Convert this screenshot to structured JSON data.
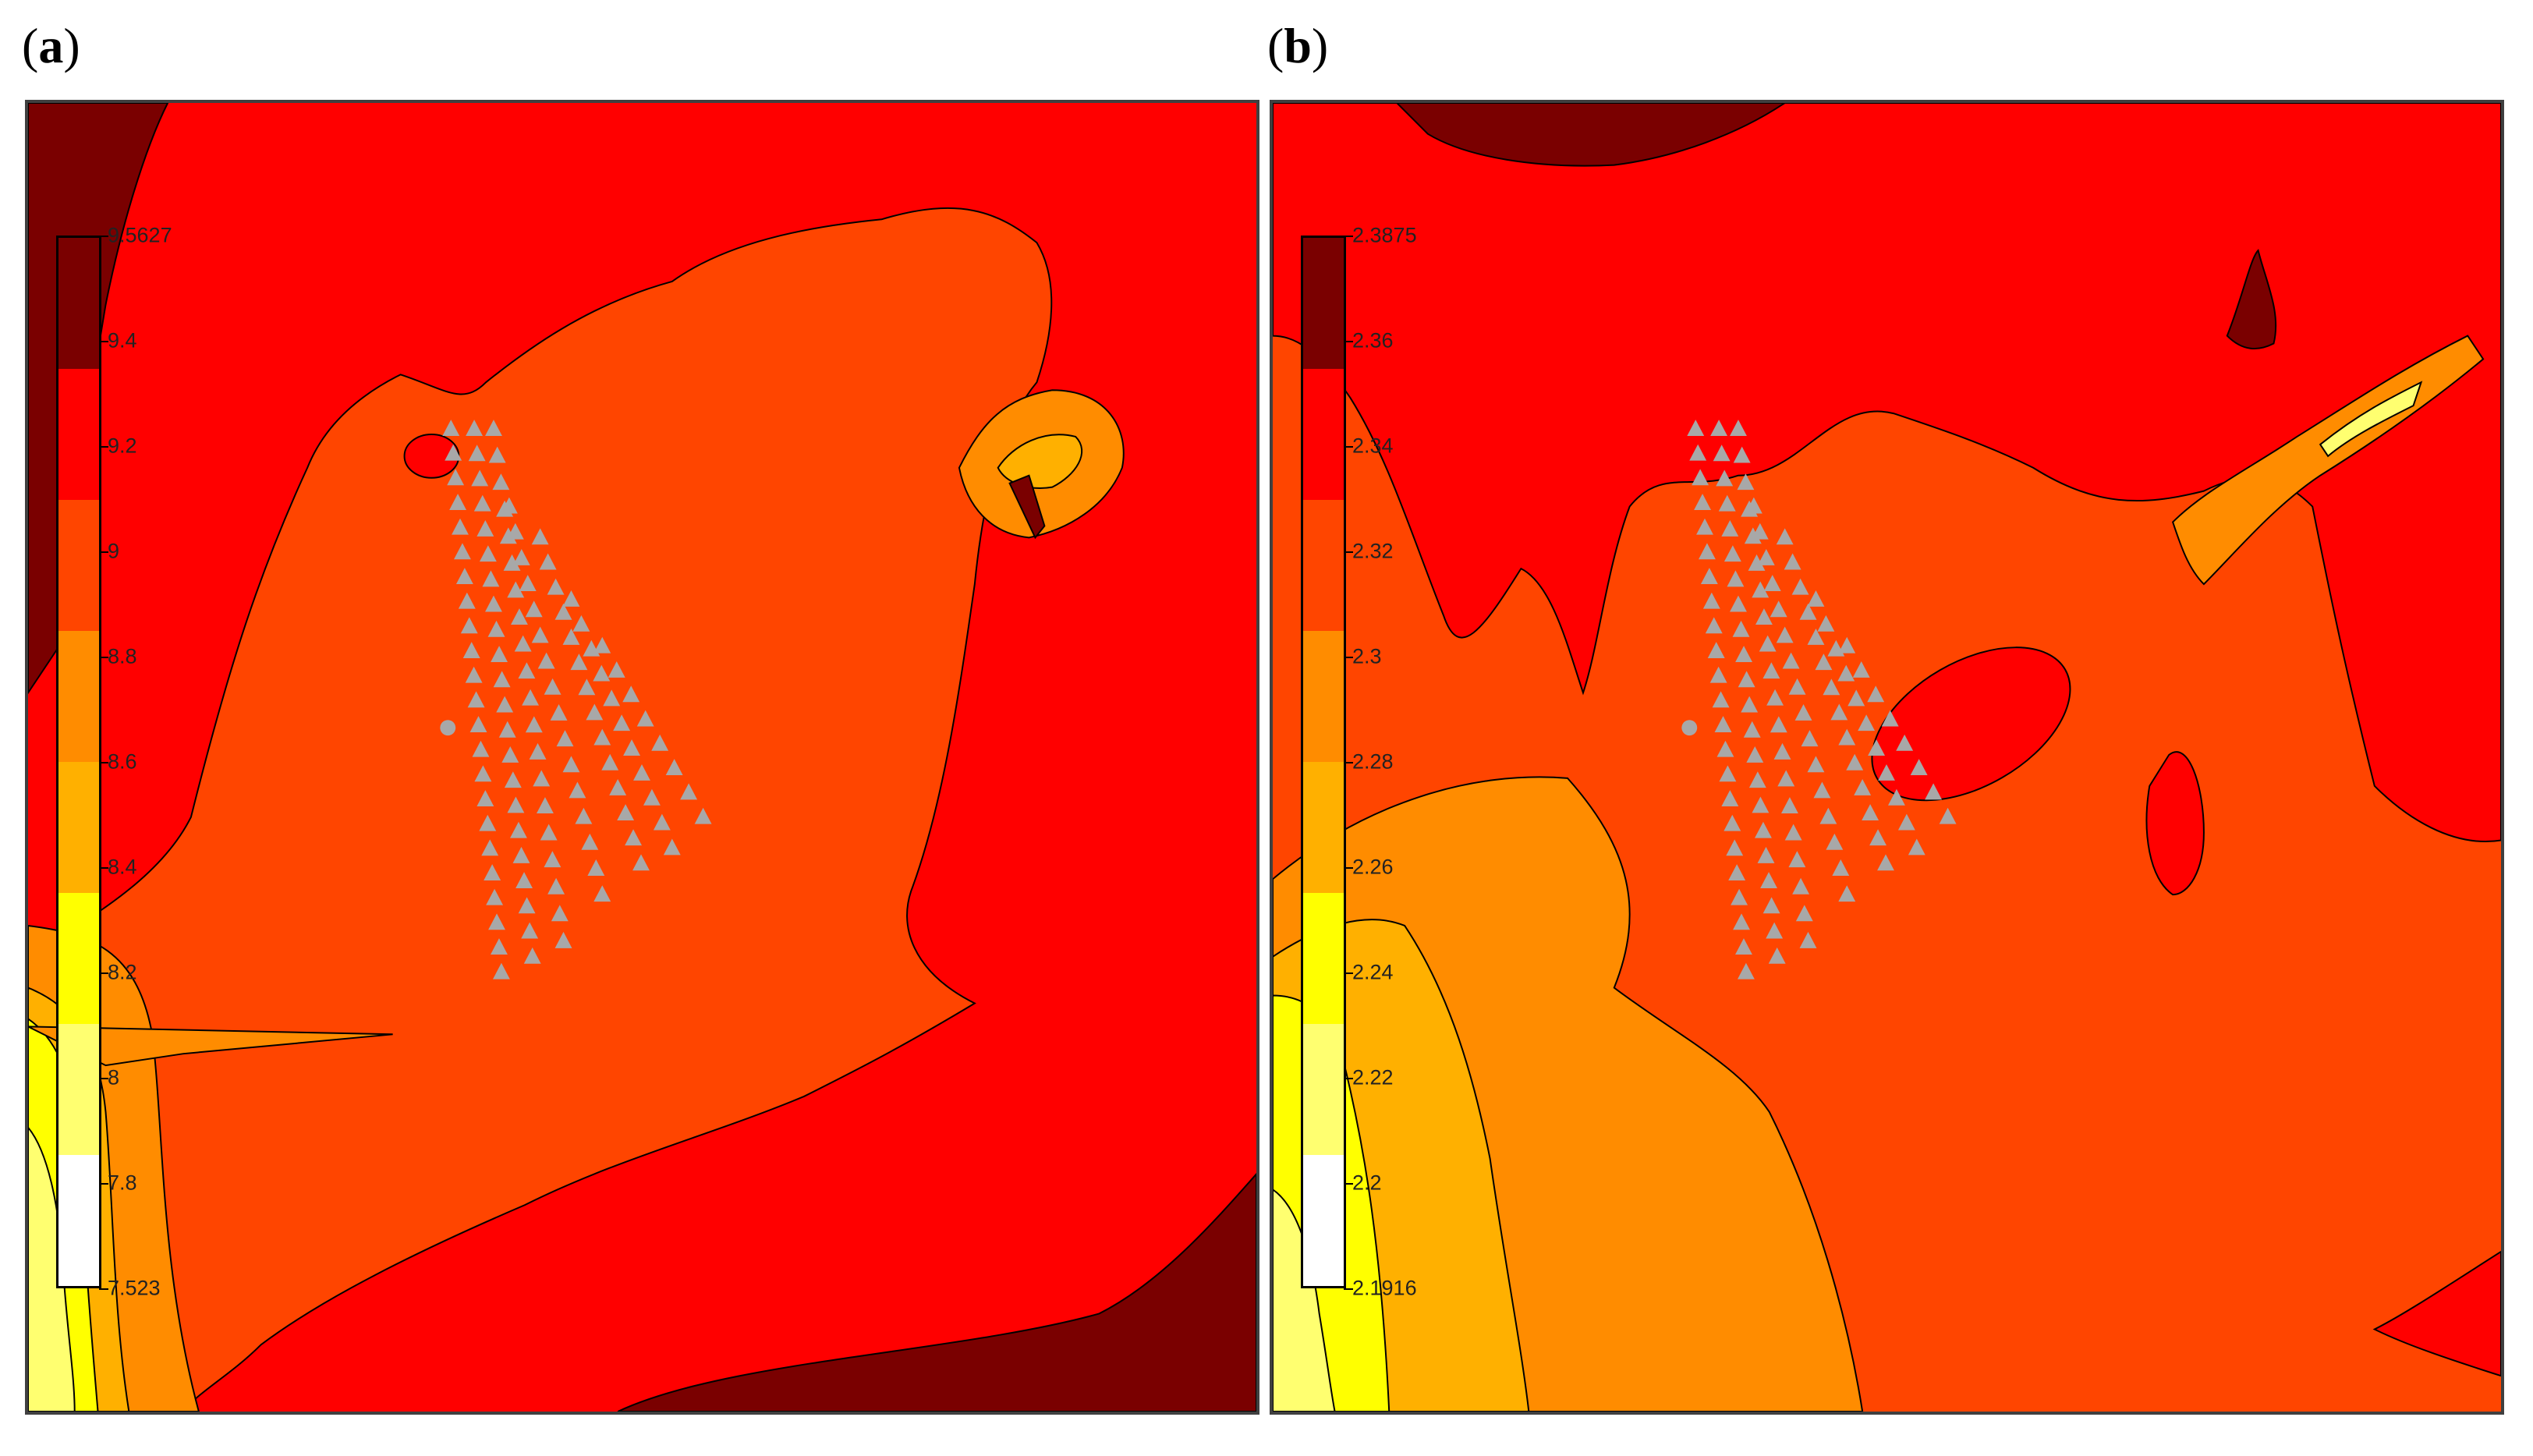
{
  "panels": [
    {
      "label": "a",
      "legend": {
        "ticks": [
          "9.5627",
          "9.4",
          "9.2",
          "9",
          "8.8",
          "8.6",
          "8.4",
          "8.2",
          "8",
          "7.8",
          "7.523"
        ],
        "colors": [
          "#7a0000",
          "#ff0000",
          "#ff4500",
          "#ff8c00",
          "#ffb000",
          "#ffff00",
          "#ffff70",
          "#ffffff"
        ]
      },
      "marker_icon": "grey-triangle-icon",
      "reference_icon": "grey-circle-icon"
    },
    {
      "label": "b",
      "legend": {
        "ticks": [
          "2.3875",
          "2.36",
          "2.34",
          "2.32",
          "2.3",
          "2.28",
          "2.26",
          "2.24",
          "2.22",
          "2.2",
          "2.1916"
        ],
        "colors": [
          "#7a0000",
          "#ff0000",
          "#ff4500",
          "#ff8c00",
          "#ffb000",
          "#ffff00",
          "#ffff70",
          "#ffffff"
        ]
      },
      "marker_icon": "grey-triangle-icon",
      "reference_icon": "grey-circle-icon"
    }
  ]
}
